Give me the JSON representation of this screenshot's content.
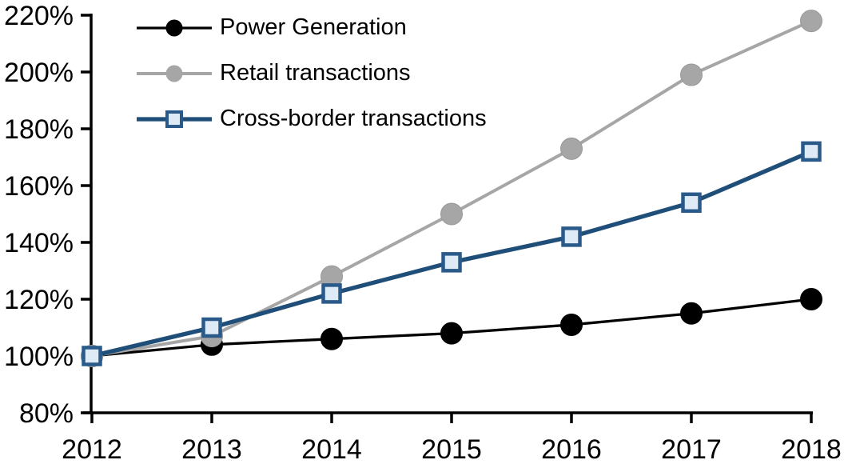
{
  "chart_data": {
    "type": "line",
    "title": "",
    "xlabel": "",
    "ylabel": "",
    "grid": false,
    "legend_position": "top-left-inside",
    "x_labels": [
      "2012",
      "2013",
      "2014",
      "2015",
      "2016",
      "2017",
      "2018"
    ],
    "ylim": [
      80,
      220
    ],
    "y_ticks": [
      220,
      200,
      180,
      160,
      140,
      120,
      100,
      80
    ],
    "y_tick_labels": [
      "220%",
      "200%",
      "180%",
      "160%",
      "140%",
      "120%",
      "100%",
      "80%"
    ],
    "axis_color": "#000000",
    "series": [
      {
        "name": "Power Generation",
        "marker": "circle",
        "color": "#000000",
        "marker_fill": "#000000",
        "marker_border": "#000000",
        "line_width": 3.3,
        "values": [
          100,
          104,
          106,
          108,
          111,
          115,
          120
        ]
      },
      {
        "name": "Retail transactions",
        "marker": "circle",
        "color": "#A6A6A6",
        "marker_fill": "#A6A6A6",
        "marker_border": "#999999",
        "line_width": 4,
        "values": [
          100,
          107,
          128,
          150,
          173,
          199,
          218
        ]
      },
      {
        "name": "Cross-border transactions",
        "marker": "square",
        "color": "#1F4E79",
        "marker_fill": "#DEEAF6",
        "marker_border": "#2A5A8A",
        "line_width": 5.3,
        "values": [
          100,
          110,
          122,
          133,
          142,
          154,
          172
        ]
      }
    ]
  }
}
